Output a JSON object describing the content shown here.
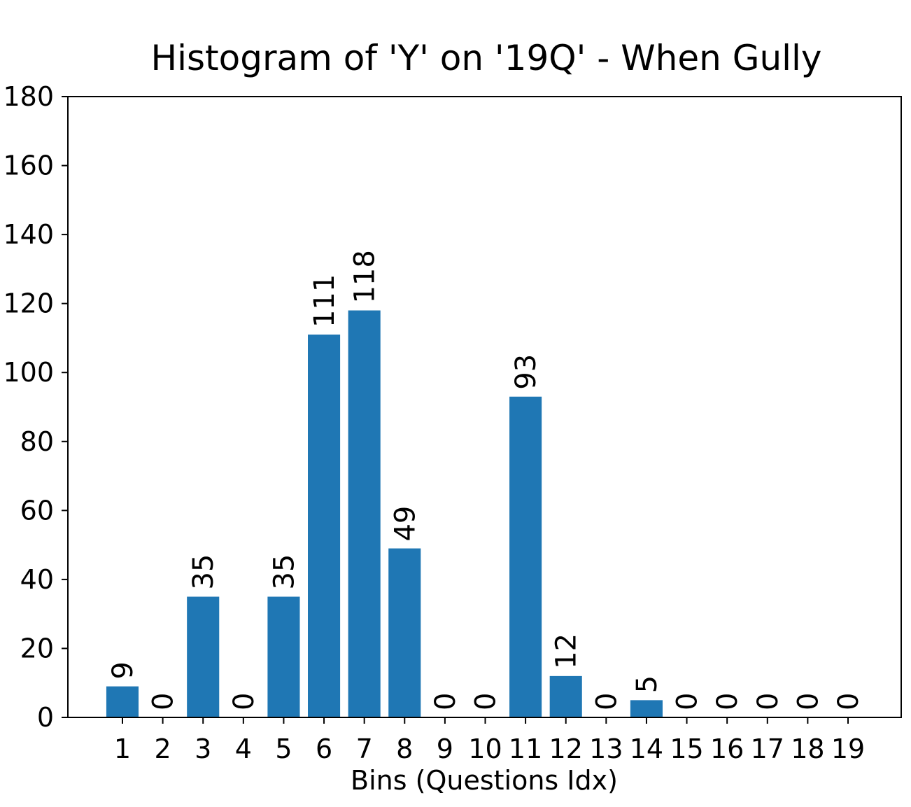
{
  "chart_data": {
    "type": "bar",
    "title": "Histogram of 'Y' on '19Q' - When Gully",
    "xlabel": "Bins (Questions Idx)",
    "categories": [
      "1",
      "2",
      "3",
      "4",
      "5",
      "6",
      "7",
      "8",
      "9",
      "10",
      "11",
      "12",
      "13",
      "14",
      "15",
      "16",
      "17",
      "18",
      "19"
    ],
    "values": [
      9,
      0,
      35,
      0,
      35,
      111,
      118,
      49,
      0,
      0,
      93,
      12,
      0,
      5,
      0,
      0,
      0,
      0,
      0
    ],
    "color": "#1f77b4",
    "ylim": [
      0,
      180
    ],
    "yticks": [
      0,
      20,
      40,
      60,
      80,
      100,
      120,
      140,
      160,
      180
    ],
    "grid": false
  }
}
